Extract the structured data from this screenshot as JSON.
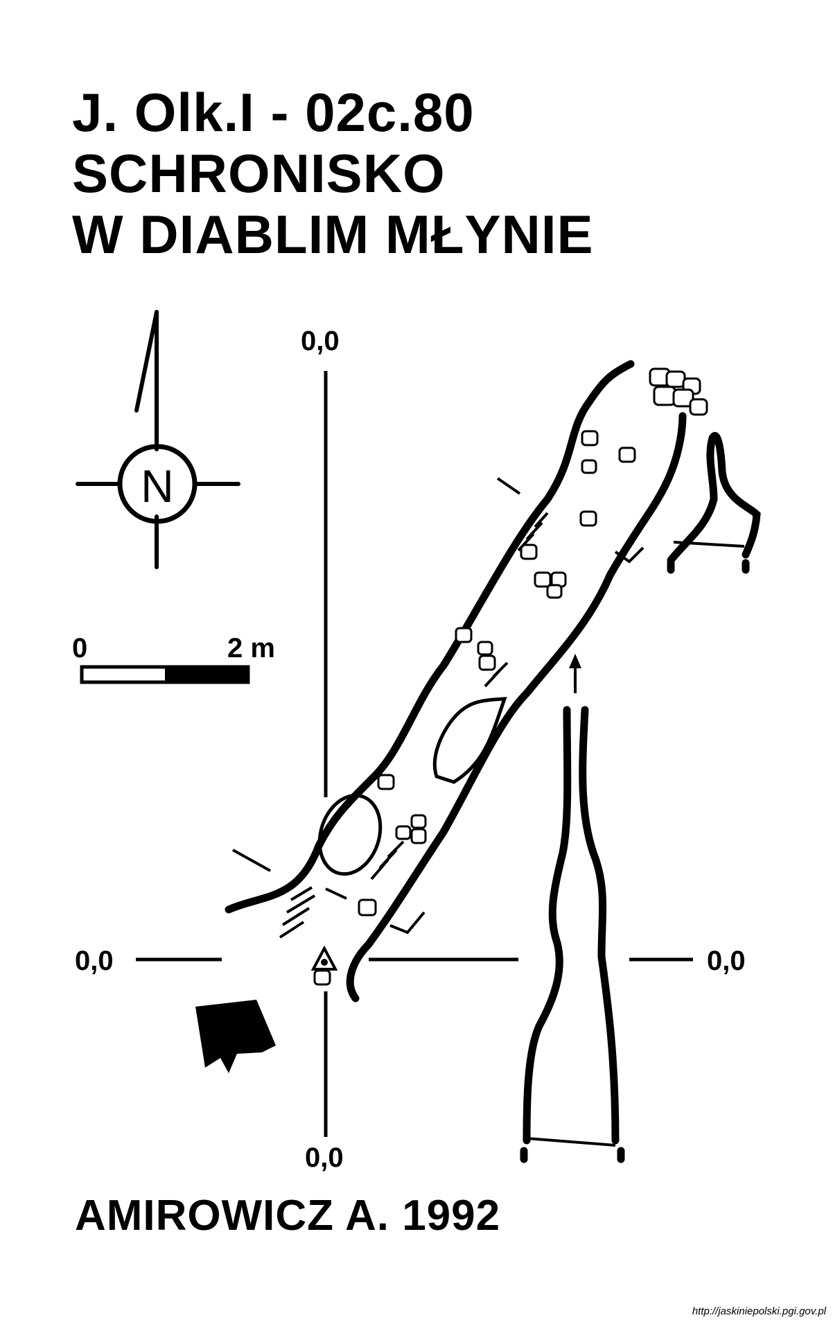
{
  "title": {
    "line1": "J. Olk.I - 02c.80",
    "line2": "SCHRONISKO",
    "line3": "W DIABLIM MŁYNIE"
  },
  "north_arrow": {
    "label": "N",
    "icon": "north-arrow-icon"
  },
  "scale_bar": {
    "start_label": "0",
    "end_label": "2 m"
  },
  "datum_labels": {
    "top": "0,0",
    "left": "0,0",
    "right": "0,0",
    "bottom": "0,0"
  },
  "author": "AMIROWICZ A. 1992",
  "source": "http://jaskiniepolski.pgi.gov.pl",
  "colors": {
    "ink": "#000000",
    "paper": "#ffffff"
  }
}
